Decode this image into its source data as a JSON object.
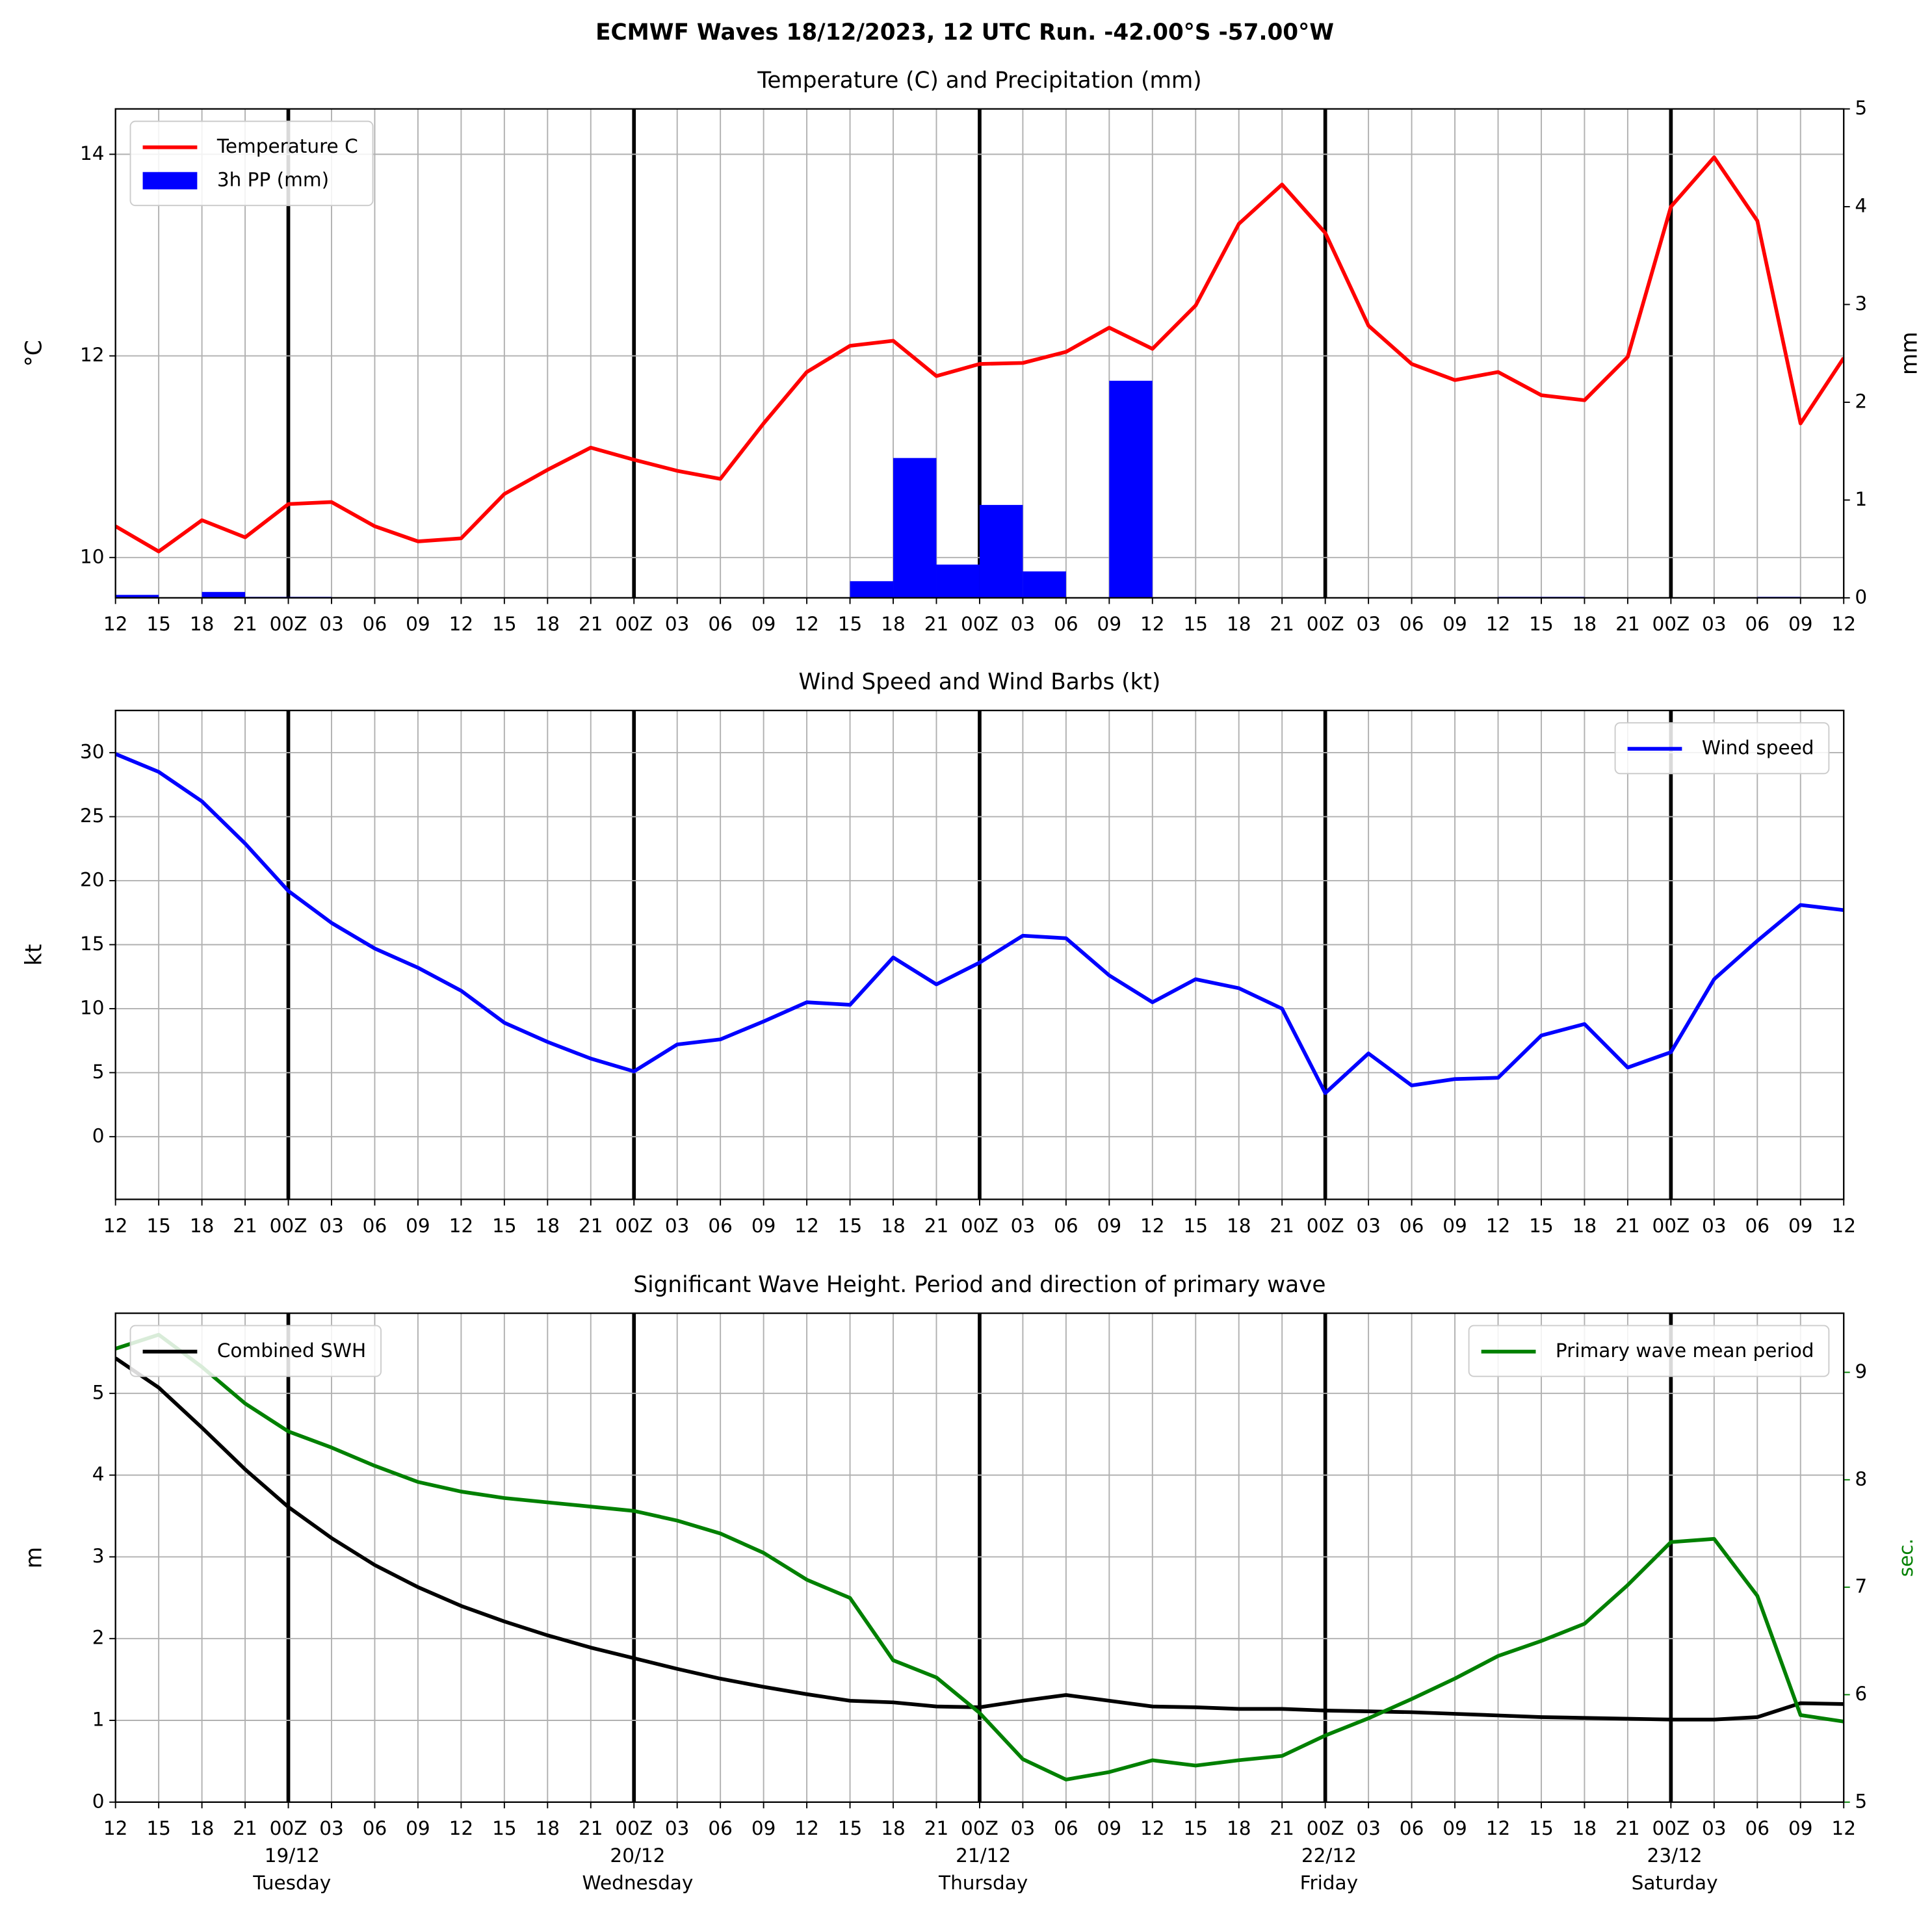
{
  "title": "ECMWF Waves 18/12/2023, 12 UTC Run. -42.00°S -57.00°W",
  "chart_data": [
    {
      "type": "line",
      "title": "Temperature (C) and Precipitation (mm)",
      "ylabel": "°C",
      "y2label": "mm",
      "categories": [
        "12",
        "15",
        "18",
        "21",
        "00Z",
        "03",
        "06",
        "09",
        "12",
        "15",
        "18",
        "21",
        "00Z",
        "03",
        "06",
        "09",
        "12",
        "15",
        "18",
        "21",
        "00Z",
        "03",
        "06",
        "09",
        "12",
        "15",
        "18",
        "21",
        "00Z",
        "03",
        "06",
        "09",
        "12",
        "15",
        "18",
        "21",
        "00Z",
        "03",
        "06",
        "09",
        "12"
      ],
      "series": [
        {
          "name": "Temperature C",
          "type": "line",
          "color": "#ff0000",
          "values": [
            10.31,
            10.06,
            10.37,
            10.2,
            10.53,
            10.55,
            10.31,
            10.16,
            10.19,
            10.63,
            10.87,
            11.09,
            10.97,
            10.86,
            10.78,
            11.33,
            11.84,
            12.1,
            12.15,
            11.8,
            11.92,
            11.93,
            12.04,
            12.28,
            12.07,
            12.5,
            13.31,
            13.7,
            13.22,
            12.3,
            11.92,
            11.76,
            11.84,
            11.61,
            11.56,
            11.99,
            13.48,
            13.97,
            13.34,
            11.33,
            11.98
          ]
        },
        {
          "name": "3h PP (mm)",
          "type": "bar",
          "color": "#0000ff",
          "axis": "y2",
          "values": [
            0.03,
            0,
            0.06,
            0.01,
            0.01,
            0,
            0,
            0,
            0,
            0,
            0,
            0,
            0,
            0,
            0,
            0,
            0,
            0.17,
            1.43,
            0.34,
            0.95,
            0.27,
            0,
            2.22,
            0,
            0,
            0,
            0,
            0,
            0,
            0,
            0,
            0.01,
            0.01,
            0,
            0,
            0,
            0,
            0.01,
            0,
            0
          ]
        }
      ],
      "ylim": [
        9.6,
        14.45
      ],
      "yticks": [
        10,
        12,
        14
      ],
      "y2lim": [
        0,
        5
      ],
      "y2ticks": [
        0,
        1,
        2,
        3,
        4,
        5
      ],
      "grid": true,
      "legend": "upper left"
    },
    {
      "type": "line",
      "title": "Wind Speed and Wind Barbs (kt)",
      "ylabel": "kt",
      "categories": [
        "12",
        "15",
        "18",
        "21",
        "00Z",
        "03",
        "06",
        "09",
        "12",
        "15",
        "18",
        "21",
        "00Z",
        "03",
        "06",
        "09",
        "12",
        "15",
        "18",
        "21",
        "00Z",
        "03",
        "06",
        "09",
        "12",
        "15",
        "18",
        "21",
        "00Z",
        "03",
        "06",
        "09",
        "12",
        "15",
        "18",
        "21",
        "00Z",
        "03",
        "06",
        "09",
        "12"
      ],
      "series": [
        {
          "name": "Wind speed",
          "type": "line",
          "color": "#0000ff",
          "values": [
            29.9,
            28.5,
            26.2,
            22.9,
            19.2,
            16.7,
            14.7,
            13.2,
            11.4,
            8.9,
            7.4,
            6.1,
            5.1,
            7.2,
            7.6,
            9.0,
            10.5,
            10.3,
            14.0,
            11.9,
            13.6,
            15.7,
            15.5,
            12.6,
            10.5,
            12.3,
            11.6,
            10.0,
            3.4,
            6.5,
            4.0,
            4.5,
            4.6,
            7.9,
            8.8,
            5.4,
            6.6,
            12.3,
            15.3,
            18.1,
            17.7
          ]
        }
      ],
      "ylim": [
        -4.9,
        33.3
      ],
      "yticks": [
        0,
        5,
        10,
        15,
        20,
        25,
        30
      ],
      "grid": true,
      "legend": "upper right"
    },
    {
      "type": "line",
      "title": "Significant Wave Height. Period and direction of primary wave",
      "ylabel": "m",
      "y2label": "sec.",
      "y2color": "#008000",
      "categories": [
        "12",
        "15",
        "18",
        "21",
        "00Z",
        "03",
        "06",
        "09",
        "12",
        "15",
        "18",
        "21",
        "00Z",
        "03",
        "06",
        "09",
        "12",
        "15",
        "18",
        "21",
        "00Z",
        "03",
        "06",
        "09",
        "12",
        "15",
        "18",
        "21",
        "00Z",
        "03",
        "06",
        "09",
        "12",
        "15",
        "18",
        "21",
        "00Z",
        "03",
        "06",
        "09",
        "12"
      ],
      "dates": [
        null,
        null,
        null,
        null,
        "19/12",
        null,
        null,
        null,
        null,
        null,
        null,
        null,
        "20/12",
        null,
        null,
        null,
        null,
        null,
        null,
        null,
        "21/12",
        null,
        null,
        null,
        null,
        null,
        null,
        null,
        "22/12",
        null,
        null,
        null,
        null,
        null,
        null,
        null,
        "23/12",
        null,
        null,
        null,
        null
      ],
      "weekdays": [
        null,
        null,
        null,
        null,
        "Tuesday",
        null,
        null,
        null,
        null,
        null,
        null,
        null,
        "Wednesday",
        null,
        null,
        null,
        null,
        null,
        null,
        null,
        "Thursday",
        null,
        null,
        null,
        null,
        null,
        null,
        null,
        "Friday",
        null,
        null,
        null,
        null,
        null,
        null,
        null,
        "Saturday",
        null,
        null,
        null,
        null
      ],
      "series": [
        {
          "name": "Combined SWH",
          "type": "line",
          "color": "#000000",
          "values": [
            5.43,
            5.07,
            4.58,
            4.07,
            3.61,
            3.23,
            2.9,
            2.63,
            2.4,
            2.21,
            2.04,
            1.89,
            1.76,
            1.63,
            1.51,
            1.41,
            1.32,
            1.24,
            1.22,
            1.17,
            1.16,
            1.24,
            1.31,
            1.24,
            1.17,
            1.16,
            1.14,
            1.14,
            1.12,
            1.11,
            1.1,
            1.08,
            1.06,
            1.04,
            1.03,
            1.02,
            1.01,
            1.01,
            1.04,
            1.21,
            1.2
          ]
        },
        {
          "name": "Primary wave mean period",
          "type": "line",
          "color": "#008000",
          "axis": "y2",
          "values": [
            9.22,
            9.35,
            9.05,
            8.71,
            8.45,
            8.3,
            8.13,
            7.98,
            7.89,
            7.83,
            7.79,
            7.75,
            7.71,
            7.62,
            7.5,
            7.32,
            7.07,
            6.9,
            6.32,
            6.16,
            5.83,
            5.4,
            5.21,
            5.28,
            5.39,
            5.34,
            5.39,
            5.43,
            5.62,
            5.78,
            5.96,
            6.15,
            6.36,
            6.5,
            6.66,
            7.02,
            7.42,
            7.45,
            6.92,
            5.81,
            5.75
          ]
        }
      ],
      "ylim": [
        0,
        5.98
      ],
      "yticks": [
        0,
        1,
        2,
        3,
        4,
        5
      ],
      "y2lim": [
        5,
        9.55
      ],
      "y2ticks": [
        5,
        6,
        7,
        8,
        9
      ],
      "grid": true,
      "legend": "upper left",
      "y2legend": "upper right"
    }
  ]
}
